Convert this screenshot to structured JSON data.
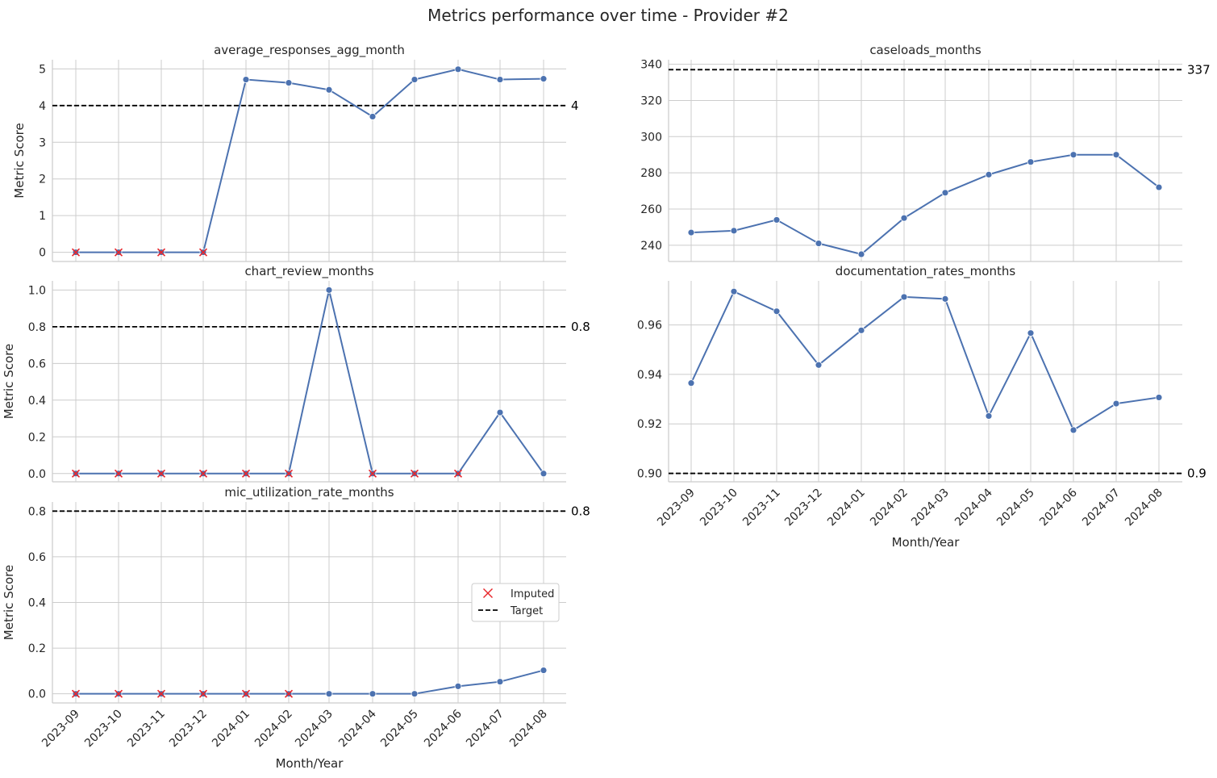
{
  "title": "Metrics performance over time - Provider #2",
  "x_axis_label": "Month/Year",
  "y_axis_label": "Metric Score",
  "legend": {
    "items": [
      {
        "label": "Imputed",
        "marker": "x",
        "color": "#e8262b"
      },
      {
        "label": "Target",
        "style": "dashed",
        "color": "#000000"
      }
    ],
    "placement": "right, inside mic_utilization_rate_months panel"
  },
  "colors": {
    "line": "#4c72b0",
    "imputed": "#e8262b",
    "target": "#000000",
    "grid": "#cccccc"
  },
  "chart_data": [
    {
      "type": "line",
      "title": "average_responses_agg_month",
      "categories": [
        "2023-09",
        "2023-10",
        "2023-11",
        "2023-12",
        "2024-01",
        "2024-02",
        "2024-03",
        "2024-04",
        "2024-05",
        "2024-06",
        "2024-07",
        "2024-08"
      ],
      "values": [
        0,
        0,
        0,
        0,
        4.71,
        4.62,
        4.43,
        3.7,
        4.71,
        4.99,
        4.71,
        4.73
      ],
      "imputed": [
        true,
        true,
        true,
        true,
        false,
        false,
        false,
        false,
        false,
        false,
        false,
        false
      ],
      "target": 4,
      "target_label": "4",
      "ylim": [
        -0.25,
        5.25
      ],
      "yticks": [
        0,
        1,
        2,
        3,
        4,
        5
      ],
      "ytick_labels": [
        "0",
        "1",
        "2",
        "3",
        "4",
        "5"
      ],
      "ylabel": "Metric Score",
      "xlabel": "",
      "show_xtick_labels": false,
      "grid": true
    },
    {
      "type": "line",
      "title": "caseloads_months",
      "categories": [
        "2023-09",
        "2023-10",
        "2023-11",
        "2023-12",
        "2024-01",
        "2024-02",
        "2024-03",
        "2024-04",
        "2024-05",
        "2024-06",
        "2024-07",
        "2024-08"
      ],
      "values": [
        247,
        248,
        254,
        241,
        235,
        255,
        269,
        279,
        286,
        290,
        290,
        272
      ],
      "imputed": [
        false,
        false,
        false,
        false,
        false,
        false,
        false,
        false,
        false,
        false,
        false,
        false
      ],
      "target": 337,
      "target_label": "337",
      "ylim": [
        231,
        342.5
      ],
      "yticks": [
        240,
        260,
        280,
        300,
        320,
        340
      ],
      "ytick_labels": [
        "240",
        "260",
        "280",
        "300",
        "320",
        "340"
      ],
      "ylabel": "",
      "xlabel": "",
      "show_xtick_labels": false,
      "grid": true
    },
    {
      "type": "line",
      "title": "chart_review_months",
      "categories": [
        "2023-09",
        "2023-10",
        "2023-11",
        "2023-12",
        "2024-01",
        "2024-02",
        "2024-03",
        "2024-04",
        "2024-05",
        "2024-06",
        "2024-07",
        "2024-08"
      ],
      "values": [
        0,
        0,
        0,
        0,
        0,
        0,
        1.0,
        0,
        0,
        0,
        0.333,
        0
      ],
      "imputed": [
        true,
        true,
        true,
        true,
        true,
        true,
        false,
        true,
        true,
        true,
        false,
        false
      ],
      "target": 0.8,
      "target_label": "0.8",
      "ylim": [
        -0.045,
        1.05
      ],
      "yticks": [
        0,
        0.2,
        0.4,
        0.6,
        0.8,
        1.0
      ],
      "ytick_labels": [
        "0.0",
        "0.2",
        "0.4",
        "0.6",
        "0.8",
        "1.0"
      ],
      "ylabel": "Metric Score",
      "xlabel": "",
      "show_xtick_labels": false,
      "grid": true
    },
    {
      "type": "line",
      "title": "documentation_rates_months",
      "categories": [
        "2023-09",
        "2023-10",
        "2023-11",
        "2023-12",
        "2024-01",
        "2024-02",
        "2024-03",
        "2024-04",
        "2024-05",
        "2024-06",
        "2024-07",
        "2024-08"
      ],
      "values": [
        0.9365,
        0.9735,
        0.9655,
        0.9438,
        0.9578,
        0.9713,
        0.9705,
        0.9232,
        0.9567,
        0.9175,
        0.9282,
        0.9307
      ],
      "imputed": [
        false,
        false,
        false,
        false,
        false,
        false,
        false,
        false,
        false,
        false,
        false,
        false
      ],
      "target": 0.9,
      "target_label": "0.9",
      "ylim": [
        0.8966,
        0.9778
      ],
      "yticks": [
        0.9,
        0.92,
        0.94,
        0.96
      ],
      "ytick_labels": [
        "0.90",
        "0.92",
        "0.94",
        "0.96"
      ],
      "ylabel": "",
      "xlabel": "Month/Year",
      "show_xtick_labels": true,
      "grid": true
    },
    {
      "type": "line",
      "title": "mic_utilization_rate_months",
      "categories": [
        "2023-09",
        "2023-10",
        "2023-11",
        "2023-12",
        "2024-01",
        "2024-02",
        "2024-03",
        "2024-04",
        "2024-05",
        "2024-06",
        "2024-07",
        "2024-08"
      ],
      "values": [
        0,
        0,
        0,
        0,
        0,
        0,
        0,
        0,
        0,
        0.033,
        0.053,
        0.103
      ],
      "imputed": [
        true,
        true,
        true,
        true,
        true,
        true,
        false,
        false,
        false,
        false,
        false,
        false
      ],
      "target": 0.8,
      "target_label": "0.8",
      "ylim": [
        -0.04,
        0.84
      ],
      "yticks": [
        0,
        0.2,
        0.4,
        0.6,
        0.8
      ],
      "ytick_labels": [
        "0.0",
        "0.2",
        "0.4",
        "0.6",
        "0.8"
      ],
      "ylabel": "Metric Score",
      "xlabel": "Month/Year",
      "show_xtick_labels": true,
      "grid": true
    }
  ]
}
